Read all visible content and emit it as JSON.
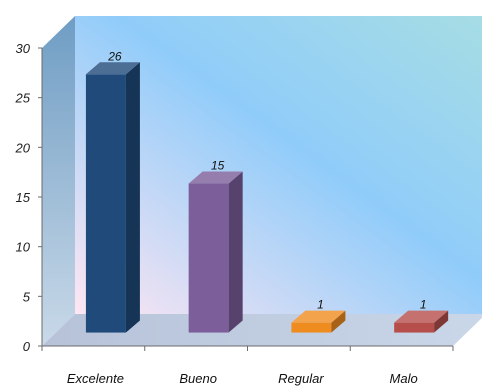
{
  "chart_data": {
    "type": "bar",
    "three_d": true,
    "categories": [
      "Excelente",
      "Bueno",
      "Regular",
      "Malo"
    ],
    "values": [
      26,
      15,
      1,
      1
    ],
    "data_labels": [
      "26",
      "15",
      "1",
      "1"
    ],
    "series": [
      {
        "category": "Excelente",
        "value": 26,
        "color": "#1f4a7a"
      },
      {
        "category": "Bueno",
        "value": 15,
        "color": "#7b5e9a"
      },
      {
        "category": "Regular",
        "value": 1,
        "color": "#ef8c1f"
      },
      {
        "category": "Malo",
        "value": 1,
        "color": "#b64e4b"
      }
    ],
    "ylim": [
      0,
      30
    ],
    "yticks": [
      0,
      5,
      10,
      15,
      20,
      25,
      30
    ],
    "ytick_labels": [
      "0",
      "5",
      "10",
      "15",
      "20",
      "25",
      "30"
    ],
    "grid": false,
    "legend": "none",
    "title": "",
    "xlabel": "",
    "ylabel": "",
    "background_colors": [
      "#ffe6f2",
      "#90ccfa",
      "#a6dde4"
    ]
  }
}
